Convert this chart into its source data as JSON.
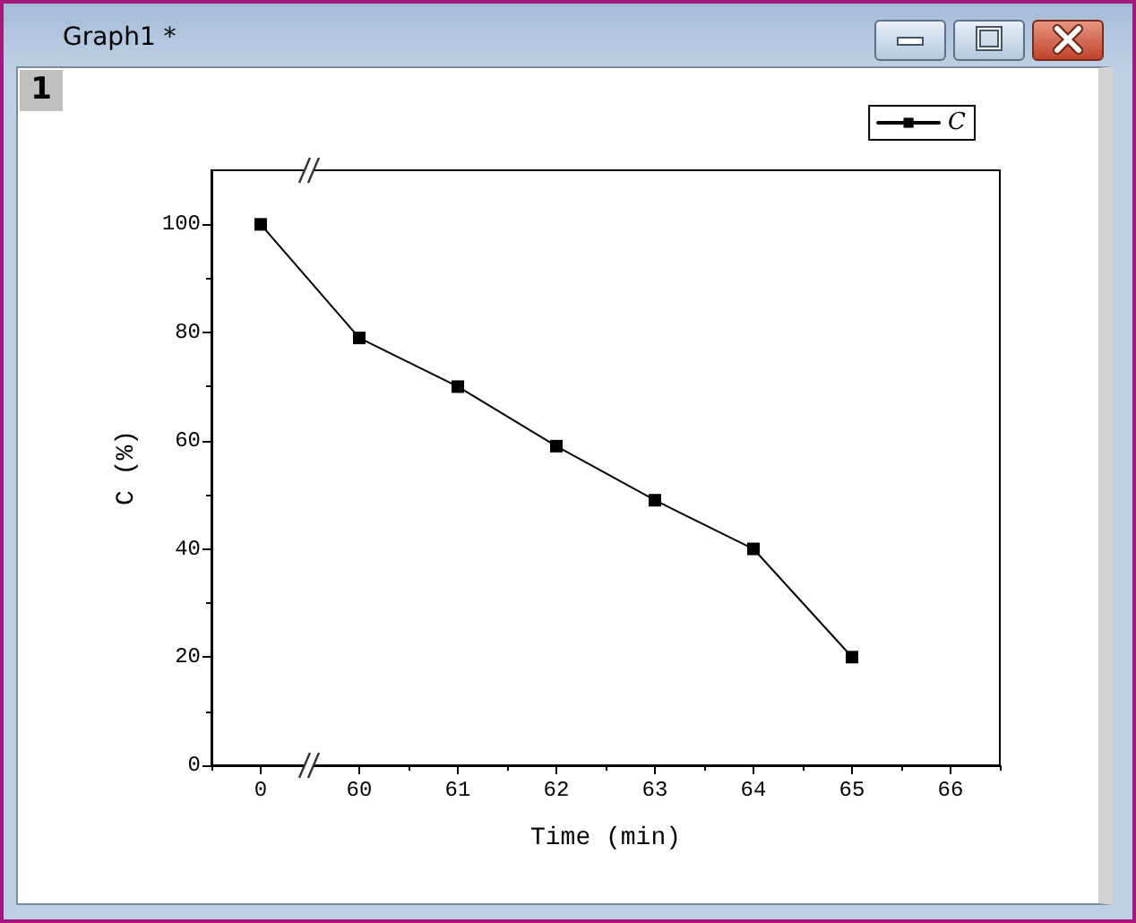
{
  "chart_data": {
    "type": "line",
    "title": "Graph1 *",
    "annotations": [
      "1"
    ],
    "xlabel": "Time (min)",
    "ylabel": "C (%)",
    "categories": [
      "0",
      "60",
      "61",
      "62",
      "63",
      "64",
      "65",
      "66"
    ],
    "series": [
      {
        "name": "C",
        "color": "#000000",
        "values": [
          100,
          79,
          70,
          59,
          49,
          40,
          20,
          null
        ]
      }
    ],
    "ylim": [
      0,
      110
    ],
    "yticks": [
      0,
      {
        "value": 10,
        "label": null
      },
      20,
      {
        "value": 30,
        "label": null
      },
      40,
      {
        "value": 50,
        "label": null
      },
      60,
      {
        "value": 70,
        "label": null
      },
      80,
      {
        "value": 90,
        "label": null
      },
      100
    ],
    "legend": "top right",
    "marker": "square",
    "line_style": "solid"
  }
}
